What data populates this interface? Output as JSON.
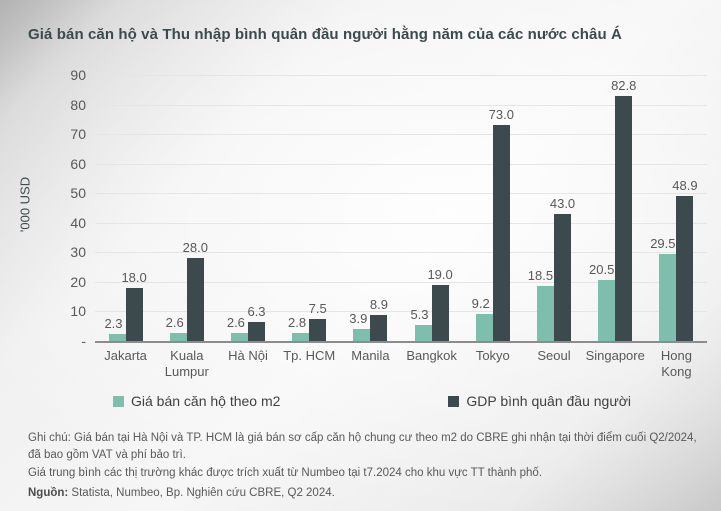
{
  "slide": {
    "title": "Giá bán căn hộ và Thu nhập bình quân đầu người hằng năm của các nước châu Á"
  },
  "y_axis": {
    "label": "'000 USD",
    "ticks": [
      "90",
      "80",
      "70",
      "60",
      "50",
      "40",
      "30",
      "20",
      "10",
      "-"
    ]
  },
  "legend": {
    "items": [
      {
        "label": "Giá bán căn hộ theo m2",
        "color": "#7dbfac"
      },
      {
        "label": "GDP bình quân đầu người",
        "color": "#3c4a4e"
      }
    ]
  },
  "footer": {
    "notes": [
      "Ghi chú: Giá bán tại Hà Nội và TP. HCM là giá bán sơ cấp căn hộ chung cư theo m2 do CBRE ghi nhận tại thời điểm cuối Q2/2024, đã bao gồm VAT và phí bảo trì.",
      "Giá trung bình các thị trường khác được trích xuất từ Numbeo tại t7.2024 cho khu vực TT thành phố."
    ],
    "source_label": "Nguồn:",
    "source_text": " Statista, Numbeo, Bp. Nghiên cứu CBRE, Q2 2024."
  },
  "chart_data": {
    "type": "bar",
    "title": "Giá bán căn hộ và Thu nhập bình quân đầu người hằng năm của các nước châu Á",
    "categories": [
      "Jakarta",
      "Kuala Lumpur",
      "Hà Nội",
      "Tp. HCM",
      "Manila",
      "Bangkok",
      "Tokyo",
      "Seoul",
      "Singapore",
      "Hong Kong"
    ],
    "series": [
      {
        "name": "Giá bán căn hộ theo m2",
        "color": "#7dbfac",
        "values": [
          2.3,
          2.6,
          2.6,
          2.8,
          3.9,
          5.3,
          9.2,
          18.5,
          20.5,
          29.5
        ]
      },
      {
        "name": "GDP bình quân đầu người",
        "color": "#3c4a4e",
        "values": [
          18.0,
          28.0,
          6.3,
          7.5,
          8.9,
          19.0,
          73.0,
          43.0,
          82.8,
          48.9
        ]
      }
    ],
    "xlabel": "",
    "ylabel": "'000 USD",
    "ylim": [
      0,
      90
    ],
    "ytick_step": 10,
    "grid": true,
    "legend_position": "bottom",
    "data_labels": true,
    "data_label_format": "one_decimal"
  }
}
